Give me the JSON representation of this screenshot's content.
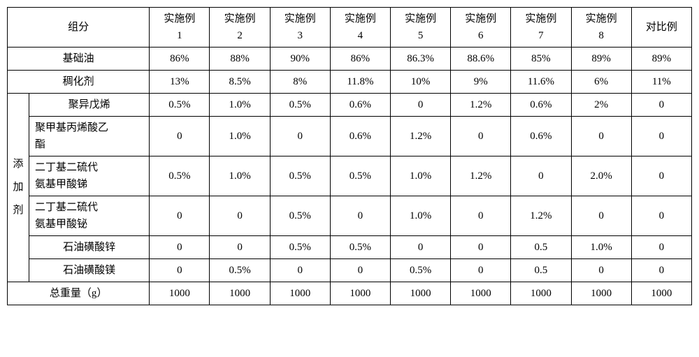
{
  "header": {
    "component": "组分",
    "example_prefix": "实施例",
    "example_nums": [
      "1",
      "2",
      "3",
      "4",
      "5",
      "6",
      "7",
      "8"
    ],
    "comparison": "对比例"
  },
  "rows": {
    "base_oil": {
      "label": "基础油",
      "v": [
        "86%",
        "88%",
        "90%",
        "86%",
        "86.3%",
        "88.6%",
        "85%",
        "89%",
        "89%"
      ]
    },
    "thickener": {
      "label": "稠化剂",
      "v": [
        "13%",
        "8.5%",
        "8%",
        "11.8%",
        "10%",
        "9%",
        "11.6%",
        "6%",
        "11%"
      ]
    },
    "additive_group": "添加剂",
    "a1": {
      "label": "聚异戊烯",
      "v": [
        "0.5%",
        "1.0%",
        "0.5%",
        "0.6%",
        "0",
        "1.2%",
        "0.6%",
        "2%",
        "0"
      ]
    },
    "a2": {
      "label": "聚甲基丙烯酸乙酯",
      "v": [
        "0",
        "1.0%",
        "0",
        "0.6%",
        "1.2%",
        "0",
        "0.6%",
        "0",
        "0"
      ]
    },
    "a3": {
      "label": "二丁基二硫代氨基甲酸锑",
      "v": [
        "0.5%",
        "1.0%",
        "0.5%",
        "0.5%",
        "1.0%",
        "1.2%",
        "0",
        "2.0%",
        "0"
      ]
    },
    "a4": {
      "label": "二丁基二硫代氨基甲酸铋",
      "v": [
        "0",
        "0",
        "0.5%",
        "0",
        "1.0%",
        "0",
        "1.2%",
        "0",
        "0"
      ]
    },
    "a5": {
      "label": "石油磺酸锌",
      "v": [
        "0",
        "0",
        "0.5%",
        "0.5%",
        "0",
        "0",
        "0.5",
        "1.0%",
        "0"
      ]
    },
    "a6": {
      "label": "石油磺酸镁",
      "v": [
        "0",
        "0.5%",
        "0",
        "0",
        "0.5%",
        "0",
        "0.5",
        "0",
        "0"
      ]
    },
    "total": {
      "label": "总重量（g）",
      "v": [
        "1000",
        "1000",
        "1000",
        "1000",
        "1000",
        "1000",
        "1000",
        "1000",
        "1000"
      ]
    }
  }
}
